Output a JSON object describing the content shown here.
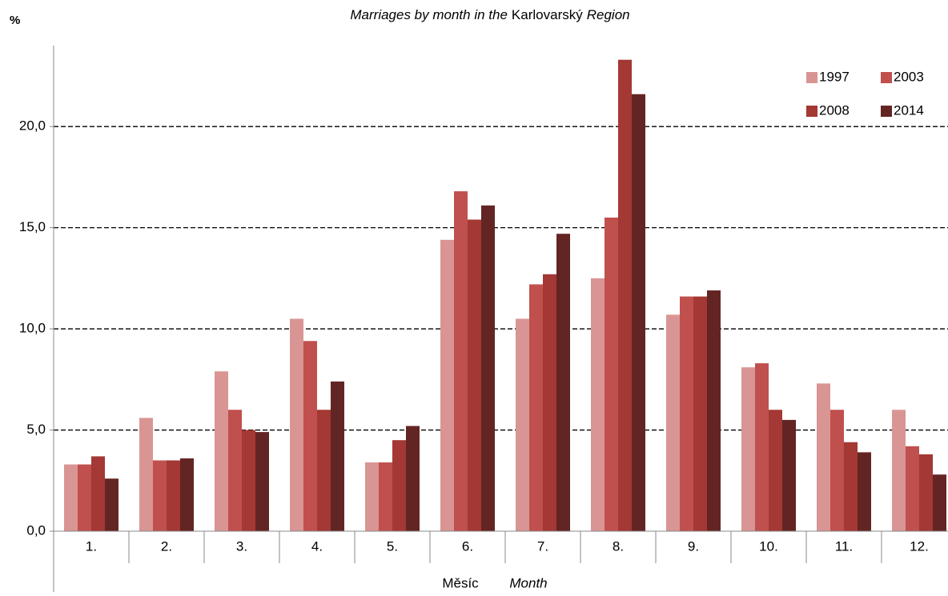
{
  "chart_data": {
    "type": "bar",
    "subtitle": [
      {
        "text": "Marriages  by month  in the",
        "italic": true
      },
      {
        "text": "Karlovarský",
        "italic": false
      },
      {
        "text": "Region",
        "italic": true
      }
    ],
    "y_label": "%",
    "x_label": "Měsíc",
    "x_label_en": "Month",
    "categories": [
      "1.",
      "2.",
      "3.",
      "4.",
      "5.",
      "6.",
      "7.",
      "8.",
      "9.",
      "10.",
      "11.",
      "12."
    ],
    "series": [
      {
        "name": "1997",
        "color": "#d99594",
        "values": [
          3.3,
          5.6,
          7.9,
          10.5,
          3.4,
          14.4,
          10.5,
          12.5,
          10.7,
          8.1,
          7.3,
          6.0
        ]
      },
      {
        "name": "2003",
        "color": "#c0504d",
        "values": [
          3.3,
          3.5,
          6.0,
          9.4,
          3.4,
          16.8,
          12.2,
          15.5,
          11.6,
          8.3,
          6.0,
          4.2
        ]
      },
      {
        "name": "2008",
        "color": "#a33834",
        "values": [
          3.7,
          3.5,
          5.0,
          6.0,
          4.5,
          15.4,
          12.7,
          23.3,
          11.6,
          6.0,
          4.4,
          3.8
        ]
      },
      {
        "name": "2014",
        "color": "#632523",
        "values": [
          2.6,
          3.6,
          4.9,
          7.4,
          5.2,
          16.1,
          14.7,
          21.6,
          11.9,
          5.5,
          3.9,
          2.8
        ]
      }
    ],
    "ylim": [
      0,
      24
    ],
    "yticks": [
      {
        "value": 0,
        "label": "0,0"
      },
      {
        "value": 5,
        "label": "5,0"
      },
      {
        "value": 10,
        "label": "10,0"
      },
      {
        "value": 15,
        "label": "15,0"
      },
      {
        "value": 20,
        "label": "20,0"
      }
    ],
    "grid": true,
    "legend": "upper right"
  }
}
